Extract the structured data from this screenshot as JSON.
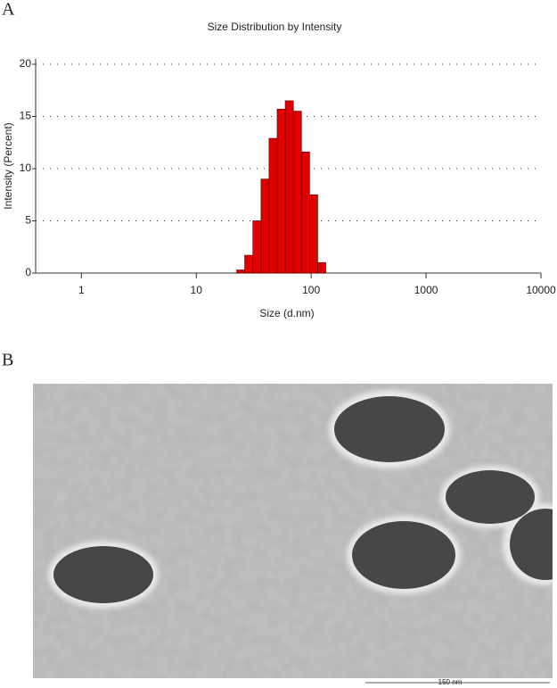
{
  "panel_a_label": "A",
  "panel_b_label": "B",
  "scale_bar_label": "150 nm",
  "chart_data": {
    "type": "histogram",
    "title": "Size Distribution by Intensity",
    "x_label": "Size (d.nm)",
    "y_label": "Intensity (Percent)",
    "xscale": "log",
    "bins": [
      22.5,
      26.4,
      31.1,
      36.6,
      43.0,
      50.6,
      59.5,
      70.0,
      82.3,
      96.8,
      113.9,
      133.9
    ],
    "values": [
      0.3,
      1.7,
      5,
      9,
      12.9,
      15.7,
      16.5,
      15.5,
      11.6,
      7.5,
      1
    ],
    "color": "#e00000",
    "xlim": [
      0.4,
      10000
    ],
    "xticks": [
      1,
      10,
      100,
      1000,
      10000
    ],
    "ylim": [
      0,
      20
    ],
    "yticks": [
      0,
      5,
      10,
      15,
      20
    ],
    "grid": true
  }
}
